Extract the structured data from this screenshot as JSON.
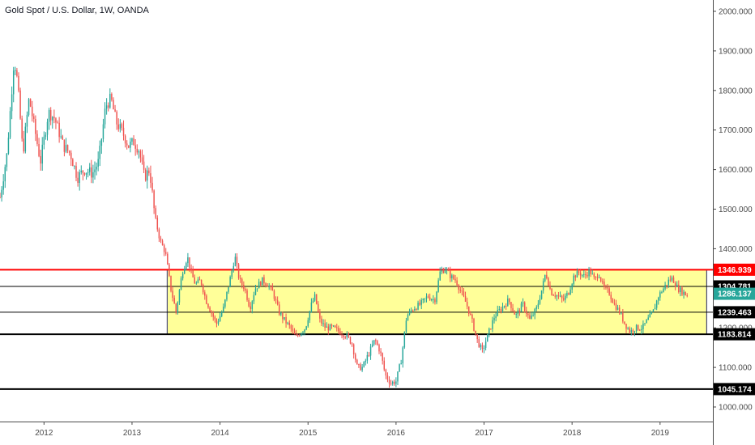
{
  "header": {
    "title": "Gold Spot / U.S. Dollar, 1W, OANDA"
  },
  "chart_data": {
    "type": "candlestick",
    "title": "Gold Spot / U.S. Dollar, 1W, OANDA",
    "xlabel": "",
    "ylabel": "",
    "xlim": [
      2011.5,
      2019.6
    ],
    "ylim": [
      960,
      2030
    ],
    "grid": false,
    "colors": {
      "up": "#26a69a",
      "down": "#ef5350",
      "box_fill": "#ffff99",
      "box_border": "#4a4a7a"
    },
    "y_ticks": [
      "1000.000",
      "1100.000",
      "1200.000",
      "1300.000",
      "1400.000",
      "1500.000",
      "1600.000",
      "1700.000",
      "1800.000",
      "1900.000",
      "2000.000"
    ],
    "y_tick_values": [
      1000,
      1100,
      1200,
      1300,
      1400,
      1500,
      1600,
      1700,
      1800,
      1900,
      2000
    ],
    "x_ticks": [
      "2012",
      "2013",
      "2014",
      "2015",
      "2016",
      "2017",
      "2018",
      "2019"
    ],
    "x_tick_values": [
      2012,
      2013,
      2014,
      2015,
      2016,
      2017,
      2018,
      2019
    ],
    "horizontal_levels": [
      {
        "label": "1346.939",
        "value": 1346.939,
        "color": "#ff0000",
        "badge_bg": "#ff0000",
        "badge_fg": "#ffffff"
      },
      {
        "label": "1304.781",
        "value": 1304.781,
        "color": "#000000",
        "badge_bg": "#000000",
        "badge_fg": "#ffffff"
      },
      {
        "label": "1286.137",
        "value": 1286.137,
        "color": "#26a69a",
        "badge_bg": "#26a69a",
        "badge_fg": "#ffffff"
      },
      {
        "label": "1239.463",
        "value": 1239.463,
        "color": "#000000",
        "badge_bg": "#000000",
        "badge_fg": "#ffffff"
      },
      {
        "label": "1183.814",
        "value": 1183.814,
        "color": "#000000",
        "badge_bg": "#000000",
        "badge_fg": "#ffffff"
      },
      {
        "label": "1045.174",
        "value": 1045.174,
        "color": "#000000",
        "badge_bg": "#000000",
        "badge_fg": "#ffffff"
      }
    ],
    "range_box": {
      "x_start": 2013.4,
      "x_end": 2019.53,
      "y_low": 1183.814,
      "y_high": 1346.939
    },
    "series": [
      {
        "name": "",
        "anchors": [
          [
            2011.5,
            1530
          ],
          [
            2011.58,
            1640
          ],
          [
            2011.66,
            1880
          ],
          [
            2011.7,
            1820
          ],
          [
            2011.76,
            1640
          ],
          [
            2011.83,
            1780
          ],
          [
            2011.88,
            1720
          ],
          [
            2011.96,
            1620
          ],
          [
            2012.05,
            1745
          ],
          [
            2012.12,
            1730
          ],
          [
            2012.22,
            1660
          ],
          [
            2012.3,
            1640
          ],
          [
            2012.38,
            1580
          ],
          [
            2012.46,
            1600
          ],
          [
            2012.55,
            1590
          ],
          [
            2012.62,
            1620
          ],
          [
            2012.7,
            1760
          ],
          [
            2012.76,
            1780
          ],
          [
            2012.82,
            1720
          ],
          [
            2012.9,
            1690
          ],
          [
            2012.96,
            1660
          ],
          [
            2013.02,
            1670
          ],
          [
            2013.08,
            1650
          ],
          [
            2013.14,
            1580
          ],
          [
            2013.2,
            1600
          ],
          [
            2013.26,
            1480
          ],
          [
            2013.32,
            1420
          ],
          [
            2013.38,
            1390
          ],
          [
            2013.44,
            1300
          ],
          [
            2013.5,
            1240
          ],
          [
            2013.57,
            1340
          ],
          [
            2013.63,
            1380
          ],
          [
            2013.67,
            1340
          ],
          [
            2013.72,
            1310
          ],
          [
            2013.78,
            1320
          ],
          [
            2013.84,
            1270
          ],
          [
            2013.9,
            1240
          ],
          [
            2013.96,
            1210
          ],
          [
            2014.04,
            1250
          ],
          [
            2014.11,
            1320
          ],
          [
            2014.17,
            1380
          ],
          [
            2014.22,
            1320
          ],
          [
            2014.28,
            1300
          ],
          [
            2014.34,
            1250
          ],
          [
            2014.4,
            1300
          ],
          [
            2014.48,
            1320
          ],
          [
            2014.54,
            1310
          ],
          [
            2014.6,
            1290
          ],
          [
            2014.67,
            1240
          ],
          [
            2014.73,
            1220
          ],
          [
            2014.8,
            1200
          ],
          [
            2014.86,
            1175
          ],
          [
            2014.92,
            1190
          ],
          [
            2014.97,
            1200
          ],
          [
            2015.04,
            1260
          ],
          [
            2015.08,
            1280
          ],
          [
            2015.13,
            1220
          ],
          [
            2015.2,
            1200
          ],
          [
            2015.28,
            1200
          ],
          [
            2015.36,
            1190
          ],
          [
            2015.44,
            1180
          ],
          [
            2015.5,
            1160
          ],
          [
            2015.56,
            1100
          ],
          [
            2015.62,
            1100
          ],
          [
            2015.68,
            1130
          ],
          [
            2015.76,
            1170
          ],
          [
            2015.82,
            1140
          ],
          [
            2015.88,
            1080
          ],
          [
            2015.94,
            1060
          ],
          [
            2016.0,
            1065
          ],
          [
            2016.06,
            1120
          ],
          [
            2016.12,
            1230
          ],
          [
            2016.2,
            1250
          ],
          [
            2016.28,
            1260
          ],
          [
            2016.36,
            1280
          ],
          [
            2016.44,
            1270
          ],
          [
            2016.5,
            1340
          ],
          [
            2016.56,
            1350
          ],
          [
            2016.62,
            1330
          ],
          [
            2016.68,
            1320
          ],
          [
            2016.74,
            1290
          ],
          [
            2016.8,
            1260
          ],
          [
            2016.86,
            1220
          ],
          [
            2016.92,
            1170
          ],
          [
            2016.98,
            1140
          ],
          [
            2017.04,
            1180
          ],
          [
            2017.12,
            1230
          ],
          [
            2017.2,
            1250
          ],
          [
            2017.28,
            1270
          ],
          [
            2017.36,
            1230
          ],
          [
            2017.44,
            1260
          ],
          [
            2017.52,
            1220
          ],
          [
            2017.6,
            1250
          ],
          [
            2017.66,
            1300
          ],
          [
            2017.7,
            1340
          ],
          [
            2017.76,
            1290
          ],
          [
            2017.84,
            1280
          ],
          [
            2017.9,
            1270
          ],
          [
            2017.96,
            1290
          ],
          [
            2018.02,
            1330
          ],
          [
            2018.08,
            1340
          ],
          [
            2018.14,
            1330
          ],
          [
            2018.2,
            1345
          ],
          [
            2018.26,
            1320
          ],
          [
            2018.3,
            1340
          ],
          [
            2018.36,
            1300
          ],
          [
            2018.42,
            1290
          ],
          [
            2018.48,
            1260
          ],
          [
            2018.54,
            1240
          ],
          [
            2018.6,
            1210
          ],
          [
            2018.66,
            1190
          ],
          [
            2018.72,
            1200
          ],
          [
            2018.8,
            1200
          ],
          [
            2018.86,
            1220
          ],
          [
            2018.92,
            1240
          ],
          [
            2018.98,
            1280
          ],
          [
            2019.04,
            1300
          ],
          [
            2019.1,
            1320
          ],
          [
            2019.14,
            1325
          ],
          [
            2019.2,
            1300
          ],
          [
            2019.26,
            1290
          ],
          [
            2019.32,
            1280
          ]
        ]
      }
    ]
  }
}
